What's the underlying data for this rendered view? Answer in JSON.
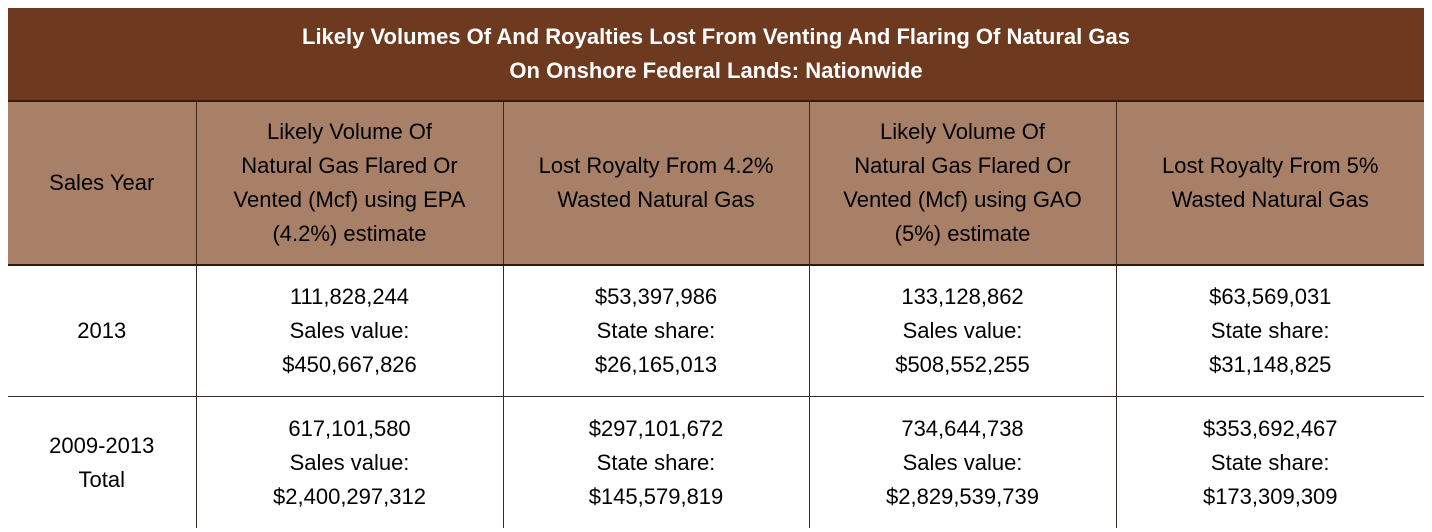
{
  "title": {
    "line1": "Likely Volumes Of And Royalties Lost From Venting And Flaring Of Natural Gas",
    "line2": "On Onshore Federal Lands: Nationwide"
  },
  "header": {
    "col1": [
      "Sales Year"
    ],
    "col2": [
      "Likely Volume Of",
      "Natural Gas Flared Or",
      "Vented (Mcf) using EPA",
      "(4.2%) estimate"
    ],
    "col3": [
      "Lost Royalty From 4.2%",
      "Wasted Natural Gas"
    ],
    "col4": [
      "Likely Volume Of",
      "Natural Gas Flared Or",
      "Vented (Mcf) using GAO",
      "(5%) estimate"
    ],
    "col5": [
      "Lost Royalty From 5%",
      "Wasted Natural Gas"
    ]
  },
  "rows": [
    {
      "year": [
        "2013"
      ],
      "epa_volume": [
        "111,828,244",
        "Sales value:",
        "$450,667,826"
      ],
      "royalty_42": [
        "$53,397,986",
        "State share:",
        "$26,165,013"
      ],
      "gao_volume": [
        "133,128,862",
        "Sales value:",
        "$508,552,255"
      ],
      "royalty_5": [
        "$63,569,031",
        "State share:",
        "$31,148,825"
      ]
    },
    {
      "year": [
        "2009-2013",
        "Total"
      ],
      "epa_volume": [
        "617,101,580",
        "Sales value:",
        "$2,400,297,312"
      ],
      "royalty_42": [
        "$297,101,672",
        "State share:",
        "$145,579,819"
      ],
      "gao_volume": [
        "734,644,738",
        "Sales value:",
        "$2,829,539,739"
      ],
      "royalty_5": [
        "$353,692,467",
        "State share:",
        "$173,309,309"
      ]
    }
  ],
  "colors": {
    "title_background": "#6e3a1f",
    "title_text": "#ffffff",
    "header_background": "#a88068",
    "grid_lines": "#3d2a1e"
  }
}
